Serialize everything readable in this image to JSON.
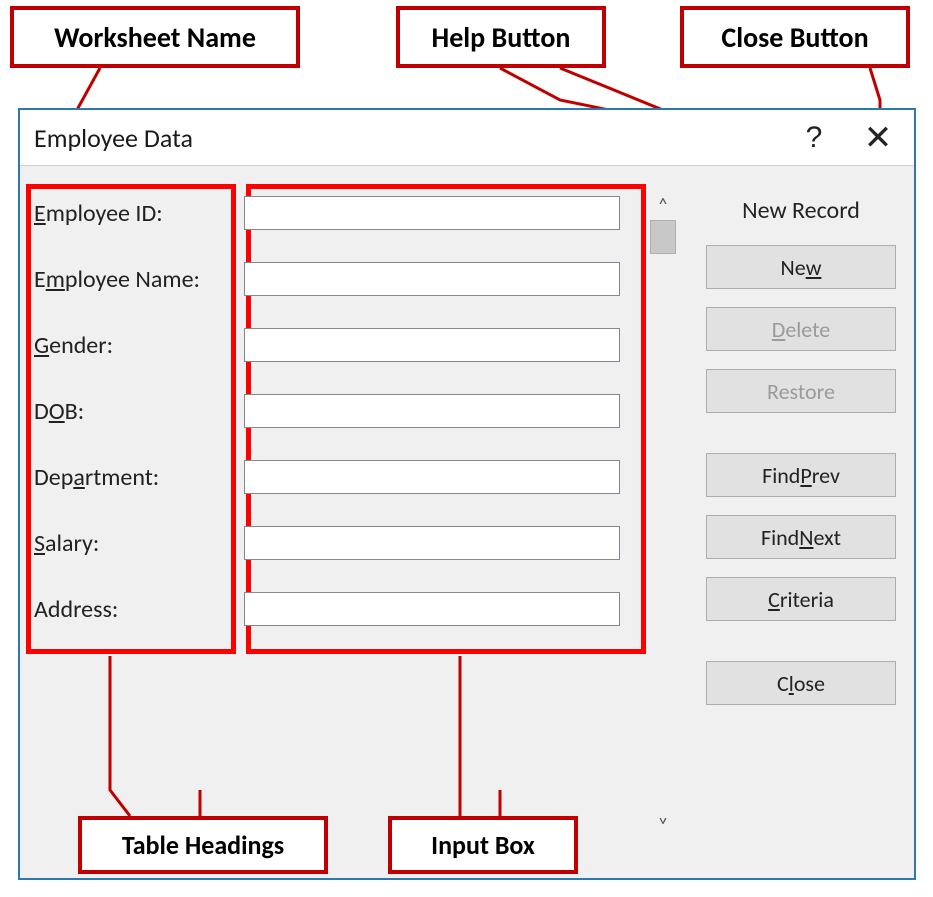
{
  "callouts": {
    "worksheet_name": "Worksheet Name",
    "help_button": "Help Button",
    "close_button": "Close Button",
    "table_headings": "Table Headings",
    "input_box": "Input Box"
  },
  "annotation": {
    "border_color": "#c00000",
    "highlight_color": "#ff0000",
    "callout_fontsize": 28,
    "callout_fontweight": 700,
    "pointer_stroke": "#c00000",
    "pointer_width": 3
  },
  "dialog": {
    "title": "Employee Data",
    "border_color": "#2a7ab0",
    "background_color": "#f0f0f0",
    "titlebar_background": "#ffffff",
    "help_glyph": "?",
    "close_glyph": "✕",
    "status_text": "New Record",
    "fields": [
      {
        "label": "Employee ID:",
        "underline_index": 0,
        "value": ""
      },
      {
        "label": "Employee Name:",
        "underline_index": 1,
        "value": ""
      },
      {
        "label": "Gender:",
        "underline_index": 0,
        "value": ""
      },
      {
        "label": "DOB:",
        "underline_index": 1,
        "value": ""
      },
      {
        "label": "Department:",
        "underline_index": 3,
        "value": ""
      },
      {
        "label": "Salary:",
        "underline_index": 0,
        "value": ""
      },
      {
        "label": "Address:",
        "underline_index": -1,
        "value": ""
      }
    ],
    "buttons": [
      {
        "label": "New",
        "underline_index": 2,
        "enabled": true
      },
      {
        "label": "Delete",
        "underline_index": 0,
        "enabled": false
      },
      {
        "label": "Restore",
        "underline_index": -1,
        "enabled": false
      },
      {
        "gap": true
      },
      {
        "label": "Find Prev",
        "underline_index": 5,
        "enabled": true
      },
      {
        "label": "Find Next",
        "underline_index": 5,
        "enabled": true
      },
      {
        "label": "Criteria",
        "underline_index": 0,
        "enabled": true
      },
      {
        "gap": true
      },
      {
        "label": "Close",
        "underline_index": 1,
        "enabled": true
      }
    ],
    "button_style": {
      "background": "#e1e1e1",
      "border": "#adadad",
      "disabled_text": "#9a9a9a",
      "fontsize": 22
    },
    "input_style": {
      "background": "#ffffff",
      "border": "#828790"
    },
    "scroll_arrows": {
      "up": "˄",
      "down": "˅"
    }
  }
}
